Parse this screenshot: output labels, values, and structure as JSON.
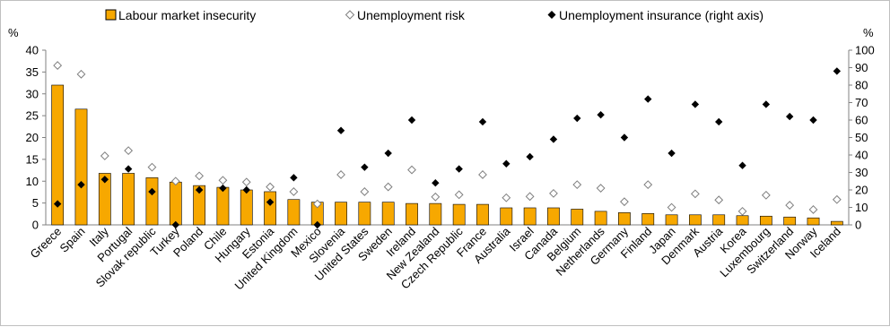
{
  "chart_data": {
    "type": "bar",
    "categories": [
      "Greece",
      "Spain",
      "Italy",
      "Portugal",
      "Slovak republic",
      "Turkey",
      "Poland",
      "Chile",
      "Hungary",
      "Estonia",
      "United Kingdom",
      "Mexico",
      "Slovenia",
      "United States",
      "Sweden",
      "Ireland",
      "New Zealand",
      "Czech Republic",
      "France",
      "Australia",
      "Israel",
      "Canada",
      "Belgium",
      "Netherlands",
      "Germany",
      "Finland",
      "Japan",
      "Denmark",
      "Austria",
      "Korea",
      "Luxembourg",
      "Switzerland",
      "Norway",
      "Iceland"
    ],
    "series": [
      {
        "name": "Labour market insecurity",
        "type": "bar",
        "axis": "left",
        "values": [
          32,
          26.5,
          11.8,
          11.8,
          10.8,
          9.8,
          9,
          8.6,
          8,
          7.6,
          5.8,
          5.2,
          5.2,
          5.2,
          5.2,
          4.9,
          4.9,
          4.7,
          4.7,
          3.9,
          3.9,
          3.9,
          3.6,
          3.1,
          2.8,
          2.6,
          2.3,
          2.3,
          2.3,
          2.1,
          2.0,
          1.8,
          1.6,
          0.8
        ]
      },
      {
        "name": "Unemployment risk",
        "type": "scatter",
        "marker": "hollow-diamond",
        "axis": "left",
        "values": [
          36.5,
          34.5,
          15.8,
          17,
          13.2,
          10,
          11.2,
          10.2,
          9.8,
          8.7,
          7.6,
          4.8,
          11.5,
          7.6,
          8.7,
          12.6,
          6.4,
          6.9,
          11.5,
          6.2,
          6.5,
          7.2,
          9.2,
          8.4,
          5.3,
          9.2,
          4.0,
          7.1,
          5.7,
          3.1,
          6.8,
          4.5,
          3.5,
          5.8
        ]
      },
      {
        "name": "Unemployment insurance (right axis)",
        "type": "scatter",
        "marker": "filled-diamond",
        "axis": "right",
        "values": [
          12,
          23,
          26,
          32,
          19,
          0,
          20,
          21,
          20,
          13,
          27,
          0,
          54,
          33,
          41,
          60,
          24,
          32,
          59,
          35,
          39,
          49,
          61,
          63,
          50,
          72,
          41,
          69,
          59,
          34,
          69,
          62,
          60,
          88
        ]
      }
    ],
    "yaxis_left": {
      "label": "%",
      "ylim": [
        0,
        40
      ],
      "ticks": [
        0,
        5,
        10,
        15,
        20,
        25,
        30,
        35,
        40
      ]
    },
    "yaxis_right": {
      "label": "%",
      "ylim": [
        0,
        100
      ],
      "ticks": [
        0,
        10,
        20,
        30,
        40,
        50,
        60,
        70,
        80,
        90,
        100
      ]
    },
    "legend": {
      "placement": "top"
    },
    "grid": false,
    "colors": {
      "bar_fill": "#f7a800",
      "bar_stroke": "#000000",
      "marker_hollow": "#7f7f7f",
      "marker_filled": "#000000",
      "axis": "#808080"
    }
  }
}
